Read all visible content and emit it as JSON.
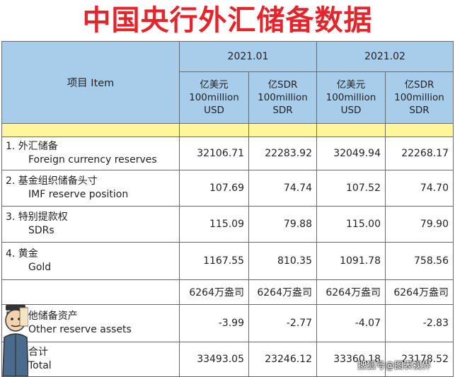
{
  "title": "中国央行外汇储备数据",
  "header": {
    "item_label": "项目  Item",
    "periods": [
      "2021.01",
      "2021.02"
    ],
    "units": [
      {
        "zh": "亿美元",
        "en": "100million",
        "cur": "USD"
      },
      {
        "zh": "亿SDR",
        "en": "100million",
        "cur": "SDR"
      },
      {
        "zh": "亿美元",
        "en": "100million",
        "cur": "USD"
      },
      {
        "zh": "亿SDR",
        "en": "100million",
        "cur": "SDR"
      }
    ]
  },
  "rows": [
    {
      "zh": "1. 外汇储备",
      "en": "Foreign currency reserves",
      "values": [
        "32106.71",
        "22283.92",
        "32049.94",
        "22268.17"
      ]
    },
    {
      "zh": "2. 基金组织储备头寸",
      "en": "IMF reserve position",
      "values": [
        "107.69",
        "74.74",
        "107.52",
        "74.70"
      ]
    },
    {
      "zh": "3. 特别提款权",
      "en": "SDRs",
      "values": [
        "115.09",
        "79.88",
        "115.00",
        "79.90"
      ]
    },
    {
      "zh": "4. 黄金",
      "en": "Gold",
      "values": [
        "1167.55",
        "810.35",
        "1091.78",
        "758.56"
      ]
    },
    {
      "zh": "",
      "en": "",
      "values": [
        "6264万盎司",
        "6264万盎司",
        "6264万盎司",
        "6264万盎司"
      ]
    },
    {
      "zh": "5. 其他储备资产",
      "en": "Other reserve assets",
      "values": [
        "-3.99",
        "-2.77",
        "-4.07",
        "-2.83"
      ]
    },
    {
      "zh": "合计",
      "en": "Total",
      "values": [
        "33493.05",
        "23246.12",
        "33360.18",
        "23178.52"
      ]
    }
  ],
  "watermark": "搜狐号@图表视界"
}
